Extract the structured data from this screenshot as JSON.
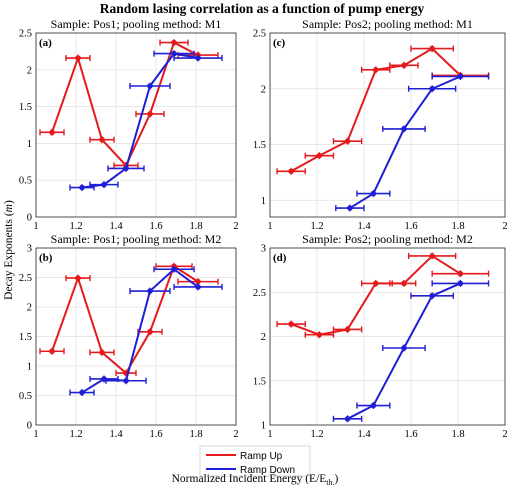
{
  "chart_data": {
    "title": "Random lasing correlation as a function of pump energy",
    "xlabel": "Normalized Incident Energy (E/E",
    "xlabel_sub": "th.",
    "xlabel_close": ")",
    "ylabel": "Decay Exponents (",
    "ylabel_var": "m",
    "ylabel_close": ")",
    "colors": {
      "ramp_up": "#e41a1c",
      "ramp_down": "#1f1fd6",
      "grid": "#e0e0e0"
    },
    "legend": {
      "placement": "bottom-center",
      "entries": [
        "Ramp Up",
        "Ramp Down"
      ]
    },
    "panels": [
      {
        "tag": "(a)",
        "title": "Sample: Pos1; pooling method: M1",
        "type": "line",
        "xlim": [
          1,
          2
        ],
        "ylim": [
          0,
          2.5
        ],
        "xticks": [
          1,
          1.2,
          1.4,
          1.6,
          1.8,
          2
        ],
        "yticks": [
          0,
          0.5,
          1,
          1.5,
          2,
          2.5
        ],
        "xtick_labels": [
          "1",
          "1.2",
          "1.4",
          "1.6",
          "1.8",
          "2"
        ],
        "ytick_labels": [
          "0",
          "0.5",
          "1",
          "1.5",
          "2",
          "2.5"
        ],
        "series": [
          {
            "name": "Ramp Up",
            "x": [
              1.08,
              1.21,
              1.33,
              1.45,
              1.57,
              1.69,
              1.81
            ],
            "y": [
              1.15,
              2.16,
              1.05,
              0.7,
              1.4,
              2.37,
              2.2
            ],
            "xerr": [
              0.06,
              0.06,
              0.06,
              0.06,
              0.07,
              0.07,
              0.1
            ]
          },
          {
            "name": "Ramp Down",
            "x": [
              1.23,
              1.34,
              1.45,
              1.57,
              1.69,
              1.81
            ],
            "y": [
              0.4,
              0.44,
              0.66,
              1.78,
              2.22,
              2.16
            ],
            "xerr": [
              0.06,
              0.07,
              0.09,
              0.1,
              0.1,
              0.12
            ]
          }
        ]
      },
      {
        "tag": "(c)",
        "title": "Sample: Pos2; pooling method: M1",
        "type": "line",
        "xlim": [
          1,
          2
        ],
        "ylim": [
          0.85,
          2.5
        ],
        "xticks": [
          1,
          1.2,
          1.4,
          1.6,
          1.8,
          2
        ],
        "yticks": [
          1,
          1.5,
          2,
          2.5
        ],
        "xtick_labels": [
          "1",
          "1.2",
          "1.4",
          "1.6",
          "1.8",
          "2"
        ],
        "ytick_labels": [
          "1",
          "1.5",
          "2",
          "2.5"
        ],
        "series": [
          {
            "name": "Ramp Up",
            "x": [
              1.09,
              1.21,
              1.33,
              1.45,
              1.57,
              1.69,
              1.81
            ],
            "y": [
              1.26,
              1.4,
              1.53,
              2.17,
              2.21,
              2.36,
              2.12
            ],
            "xerr": [
              0.06,
              0.06,
              0.06,
              0.06,
              0.06,
              0.09,
              0.12
            ]
          },
          {
            "name": "Ramp Down",
            "x": [
              1.34,
              1.44,
              1.57,
              1.69,
              1.81
            ],
            "y": [
              0.93,
              1.06,
              1.64,
              2.0,
              2.11
            ],
            "xerr": [
              0.06,
              0.07,
              0.09,
              0.1,
              0.12
            ]
          }
        ]
      },
      {
        "tag": "(b)",
        "title": "Sample: Pos1; pooling method: M2",
        "type": "line",
        "xlim": [
          1,
          2
        ],
        "ylim": [
          0,
          3
        ],
        "xticks": [
          1,
          1.2,
          1.4,
          1.6,
          1.8,
          2
        ],
        "yticks": [
          0,
          0.5,
          1,
          1.5,
          2,
          2.5,
          3
        ],
        "xtick_labels": [
          "1",
          "1.2",
          "1.4",
          "1.6",
          "1.8",
          "2"
        ],
        "ytick_labels": [
          "0",
          "0.5",
          "1",
          "1.5",
          "2",
          "2.5",
          "3"
        ],
        "series": [
          {
            "name": "Ramp Up",
            "x": [
              1.08,
              1.21,
              1.33,
              1.45,
              1.57,
              1.69,
              1.81
            ],
            "y": [
              1.25,
              2.49,
              1.23,
              0.88,
              1.58,
              2.69,
              2.43
            ],
            "xerr": [
              0.06,
              0.06,
              0.06,
              0.05,
              0.06,
              0.09,
              0.1
            ]
          },
          {
            "name": "Ramp Down",
            "x": [
              1.23,
              1.34,
              1.45,
              1.57,
              1.69,
              1.81
            ],
            "y": [
              0.55,
              0.78,
              0.75,
              2.27,
              2.64,
              2.34
            ],
            "xerr": [
              0.06,
              0.07,
              0.1,
              0.1,
              0.1,
              0.12
            ]
          }
        ]
      },
      {
        "tag": "(d)",
        "title": "Sample: Pos2; pooling method: M2",
        "type": "line",
        "xlim": [
          1,
          2
        ],
        "ylim": [
          1,
          3
        ],
        "xticks": [
          1,
          1.2,
          1.4,
          1.6,
          1.8,
          2
        ],
        "yticks": [
          1,
          1.5,
          2,
          2.5,
          3
        ],
        "xtick_labels": [
          "1",
          "1.2",
          "1.4",
          "1.6",
          "1.8",
          "2"
        ],
        "ytick_labels": [
          "1",
          "1.5",
          "2",
          "2.5",
          "3"
        ],
        "series": [
          {
            "name": "Ramp Up",
            "x": [
              1.09,
              1.21,
              1.33,
              1.45,
              1.57,
              1.69,
              1.81
            ],
            "y": [
              2.14,
              2.02,
              2.08,
              2.6,
              2.6,
              2.91,
              2.71
            ],
            "xerr": [
              0.06,
              0.06,
              0.06,
              0.06,
              0.05,
              0.1,
              0.12
            ]
          },
          {
            "name": "Ramp Down",
            "x": [
              1.33,
              1.44,
              1.57,
              1.69,
              1.81
            ],
            "y": [
              1.07,
              1.22,
              1.87,
              2.46,
              2.6
            ],
            "xerr": [
              0.06,
              0.07,
              0.09,
              0.09,
              0.12
            ]
          }
        ]
      }
    ]
  }
}
